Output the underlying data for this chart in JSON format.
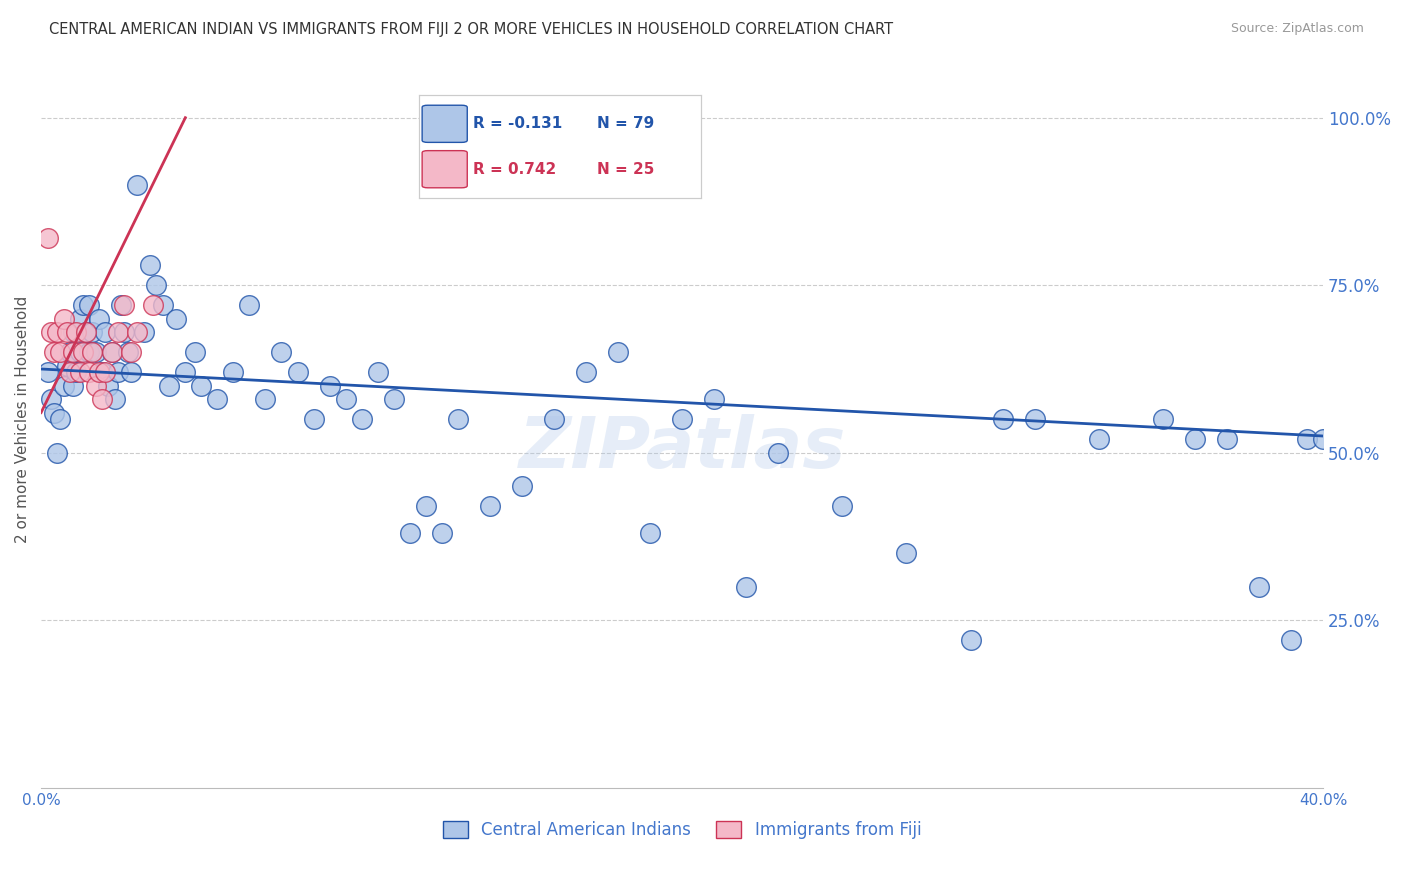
{
  "title": "CENTRAL AMERICAN INDIAN VS IMMIGRANTS FROM FIJI 2 OR MORE VEHICLES IN HOUSEHOLD CORRELATION CHART",
  "source": "Source: ZipAtlas.com",
  "ylabel": "2 or more Vehicles in Household",
  "xlim": [
    0.0,
    0.4
  ],
  "ylim": [
    0.0,
    1.1
  ],
  "xtick_labels": [
    "0.0%",
    "",
    "",
    "",
    "40.0%"
  ],
  "xtick_vals": [
    0.0,
    0.1,
    0.2,
    0.3,
    0.4
  ],
  "ytick_vals": [
    0.25,
    0.5,
    0.75,
    1.0
  ],
  "ytick_labels": [
    "25.0%",
    "50.0%",
    "75.0%",
    "100.0%"
  ],
  "blue_R": -0.131,
  "blue_N": 79,
  "pink_R": 0.742,
  "pink_N": 25,
  "blue_color": "#aec6e8",
  "pink_color": "#f4b8c8",
  "blue_line_color": "#2255aa",
  "pink_line_color": "#cc3355",
  "watermark": "ZIPatlas",
  "blue_scatter_x": [
    0.002,
    0.003,
    0.004,
    0.005,
    0.006,
    0.007,
    0.008,
    0.009,
    0.01,
    0.01,
    0.011,
    0.012,
    0.012,
    0.013,
    0.014,
    0.015,
    0.015,
    0.016,
    0.017,
    0.018,
    0.019,
    0.02,
    0.021,
    0.022,
    0.023,
    0.024,
    0.025,
    0.026,
    0.027,
    0.028,
    0.03,
    0.032,
    0.034,
    0.036,
    0.038,
    0.04,
    0.042,
    0.045,
    0.048,
    0.05,
    0.055,
    0.06,
    0.065,
    0.07,
    0.075,
    0.08,
    0.085,
    0.09,
    0.095,
    0.1,
    0.105,
    0.11,
    0.115,
    0.12,
    0.125,
    0.13,
    0.14,
    0.15,
    0.16,
    0.17,
    0.18,
    0.19,
    0.2,
    0.21,
    0.22,
    0.23,
    0.25,
    0.27,
    0.29,
    0.3,
    0.31,
    0.33,
    0.35,
    0.36,
    0.37,
    0.38,
    0.39,
    0.395,
    0.4
  ],
  "blue_scatter_y": [
    0.62,
    0.58,
    0.56,
    0.5,
    0.55,
    0.6,
    0.63,
    0.65,
    0.68,
    0.6,
    0.62,
    0.65,
    0.7,
    0.72,
    0.68,
    0.65,
    0.72,
    0.68,
    0.65,
    0.7,
    0.62,
    0.68,
    0.6,
    0.65,
    0.58,
    0.62,
    0.72,
    0.68,
    0.65,
    0.62,
    0.9,
    0.68,
    0.78,
    0.75,
    0.72,
    0.6,
    0.7,
    0.62,
    0.65,
    0.6,
    0.58,
    0.62,
    0.72,
    0.58,
    0.65,
    0.62,
    0.55,
    0.6,
    0.58,
    0.55,
    0.62,
    0.58,
    0.38,
    0.42,
    0.38,
    0.55,
    0.42,
    0.45,
    0.55,
    0.62,
    0.65,
    0.38,
    0.55,
    0.58,
    0.3,
    0.5,
    0.42,
    0.35,
    0.22,
    0.55,
    0.55,
    0.52,
    0.55,
    0.52,
    0.52,
    0.3,
    0.22,
    0.52,
    0.52
  ],
  "pink_scatter_x": [
    0.002,
    0.003,
    0.004,
    0.005,
    0.006,
    0.007,
    0.008,
    0.009,
    0.01,
    0.011,
    0.012,
    0.013,
    0.014,
    0.015,
    0.016,
    0.017,
    0.018,
    0.019,
    0.02,
    0.022,
    0.024,
    0.026,
    0.028,
    0.03,
    0.035
  ],
  "pink_scatter_y": [
    0.82,
    0.68,
    0.65,
    0.68,
    0.65,
    0.7,
    0.68,
    0.62,
    0.65,
    0.68,
    0.62,
    0.65,
    0.68,
    0.62,
    0.65,
    0.6,
    0.62,
    0.58,
    0.62,
    0.65,
    0.68,
    0.72,
    0.65,
    0.68,
    0.72
  ]
}
